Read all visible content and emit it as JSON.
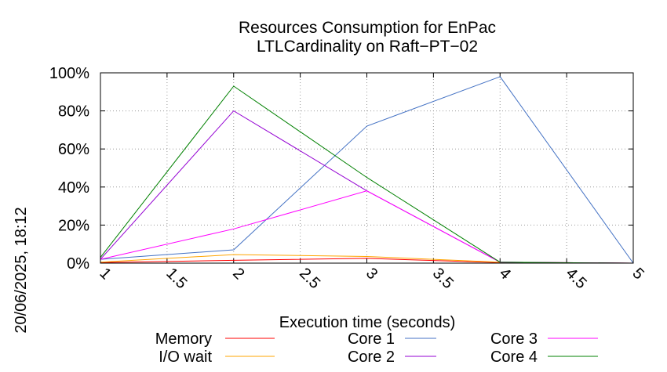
{
  "timestamp": "20/06/2025, 18:12",
  "chart_data": {
    "type": "line",
    "title_lines": [
      "Resources Consumption for EnPac",
      "LTLCardinality on Raft−PT−02"
    ],
    "xlabel": "Execution time (seconds)",
    "ylabel": "",
    "xlim": [
      1,
      5
    ],
    "ylim": [
      0,
      100
    ],
    "grid": true,
    "x_ticks": [
      "1",
      "1.5",
      "2",
      "2.5",
      "3",
      "3.5",
      "4",
      "4.5",
      "5"
    ],
    "y_ticks": [
      "0%",
      "20%",
      "40%",
      "60%",
      "80%",
      "100%"
    ],
    "legend_position": "bottom",
    "series": [
      {
        "name": "Memory",
        "color": "#ff0000",
        "x": [
          1,
          2,
          3,
          4,
          5
        ],
        "values": [
          0.3,
          1.5,
          2.5,
          0.3,
          0
        ]
      },
      {
        "name": "I/O wait",
        "color": "#ffa500",
        "x": [
          1,
          2,
          3,
          4,
          5
        ],
        "values": [
          0.5,
          4.5,
          3.5,
          0.5,
          0
        ]
      },
      {
        "name": "Core 1",
        "color": "#4472c4",
        "x": [
          1,
          2,
          3,
          4,
          5
        ],
        "values": [
          2,
          7,
          72,
          98,
          0
        ]
      },
      {
        "name": "Core 2",
        "color": "#9400d3",
        "x": [
          1,
          2,
          3,
          4,
          5
        ],
        "values": [
          2,
          80,
          38,
          0.5,
          0
        ]
      },
      {
        "name": "Core 3",
        "color": "#ff00ff",
        "x": [
          1,
          2,
          3,
          4,
          5
        ],
        "values": [
          2,
          18,
          38,
          0.5,
          0
        ]
      },
      {
        "name": "Core 4",
        "color": "#008000",
        "x": [
          1,
          2,
          3,
          4,
          5
        ],
        "values": [
          3,
          93,
          45,
          0.5,
          0
        ]
      }
    ]
  }
}
